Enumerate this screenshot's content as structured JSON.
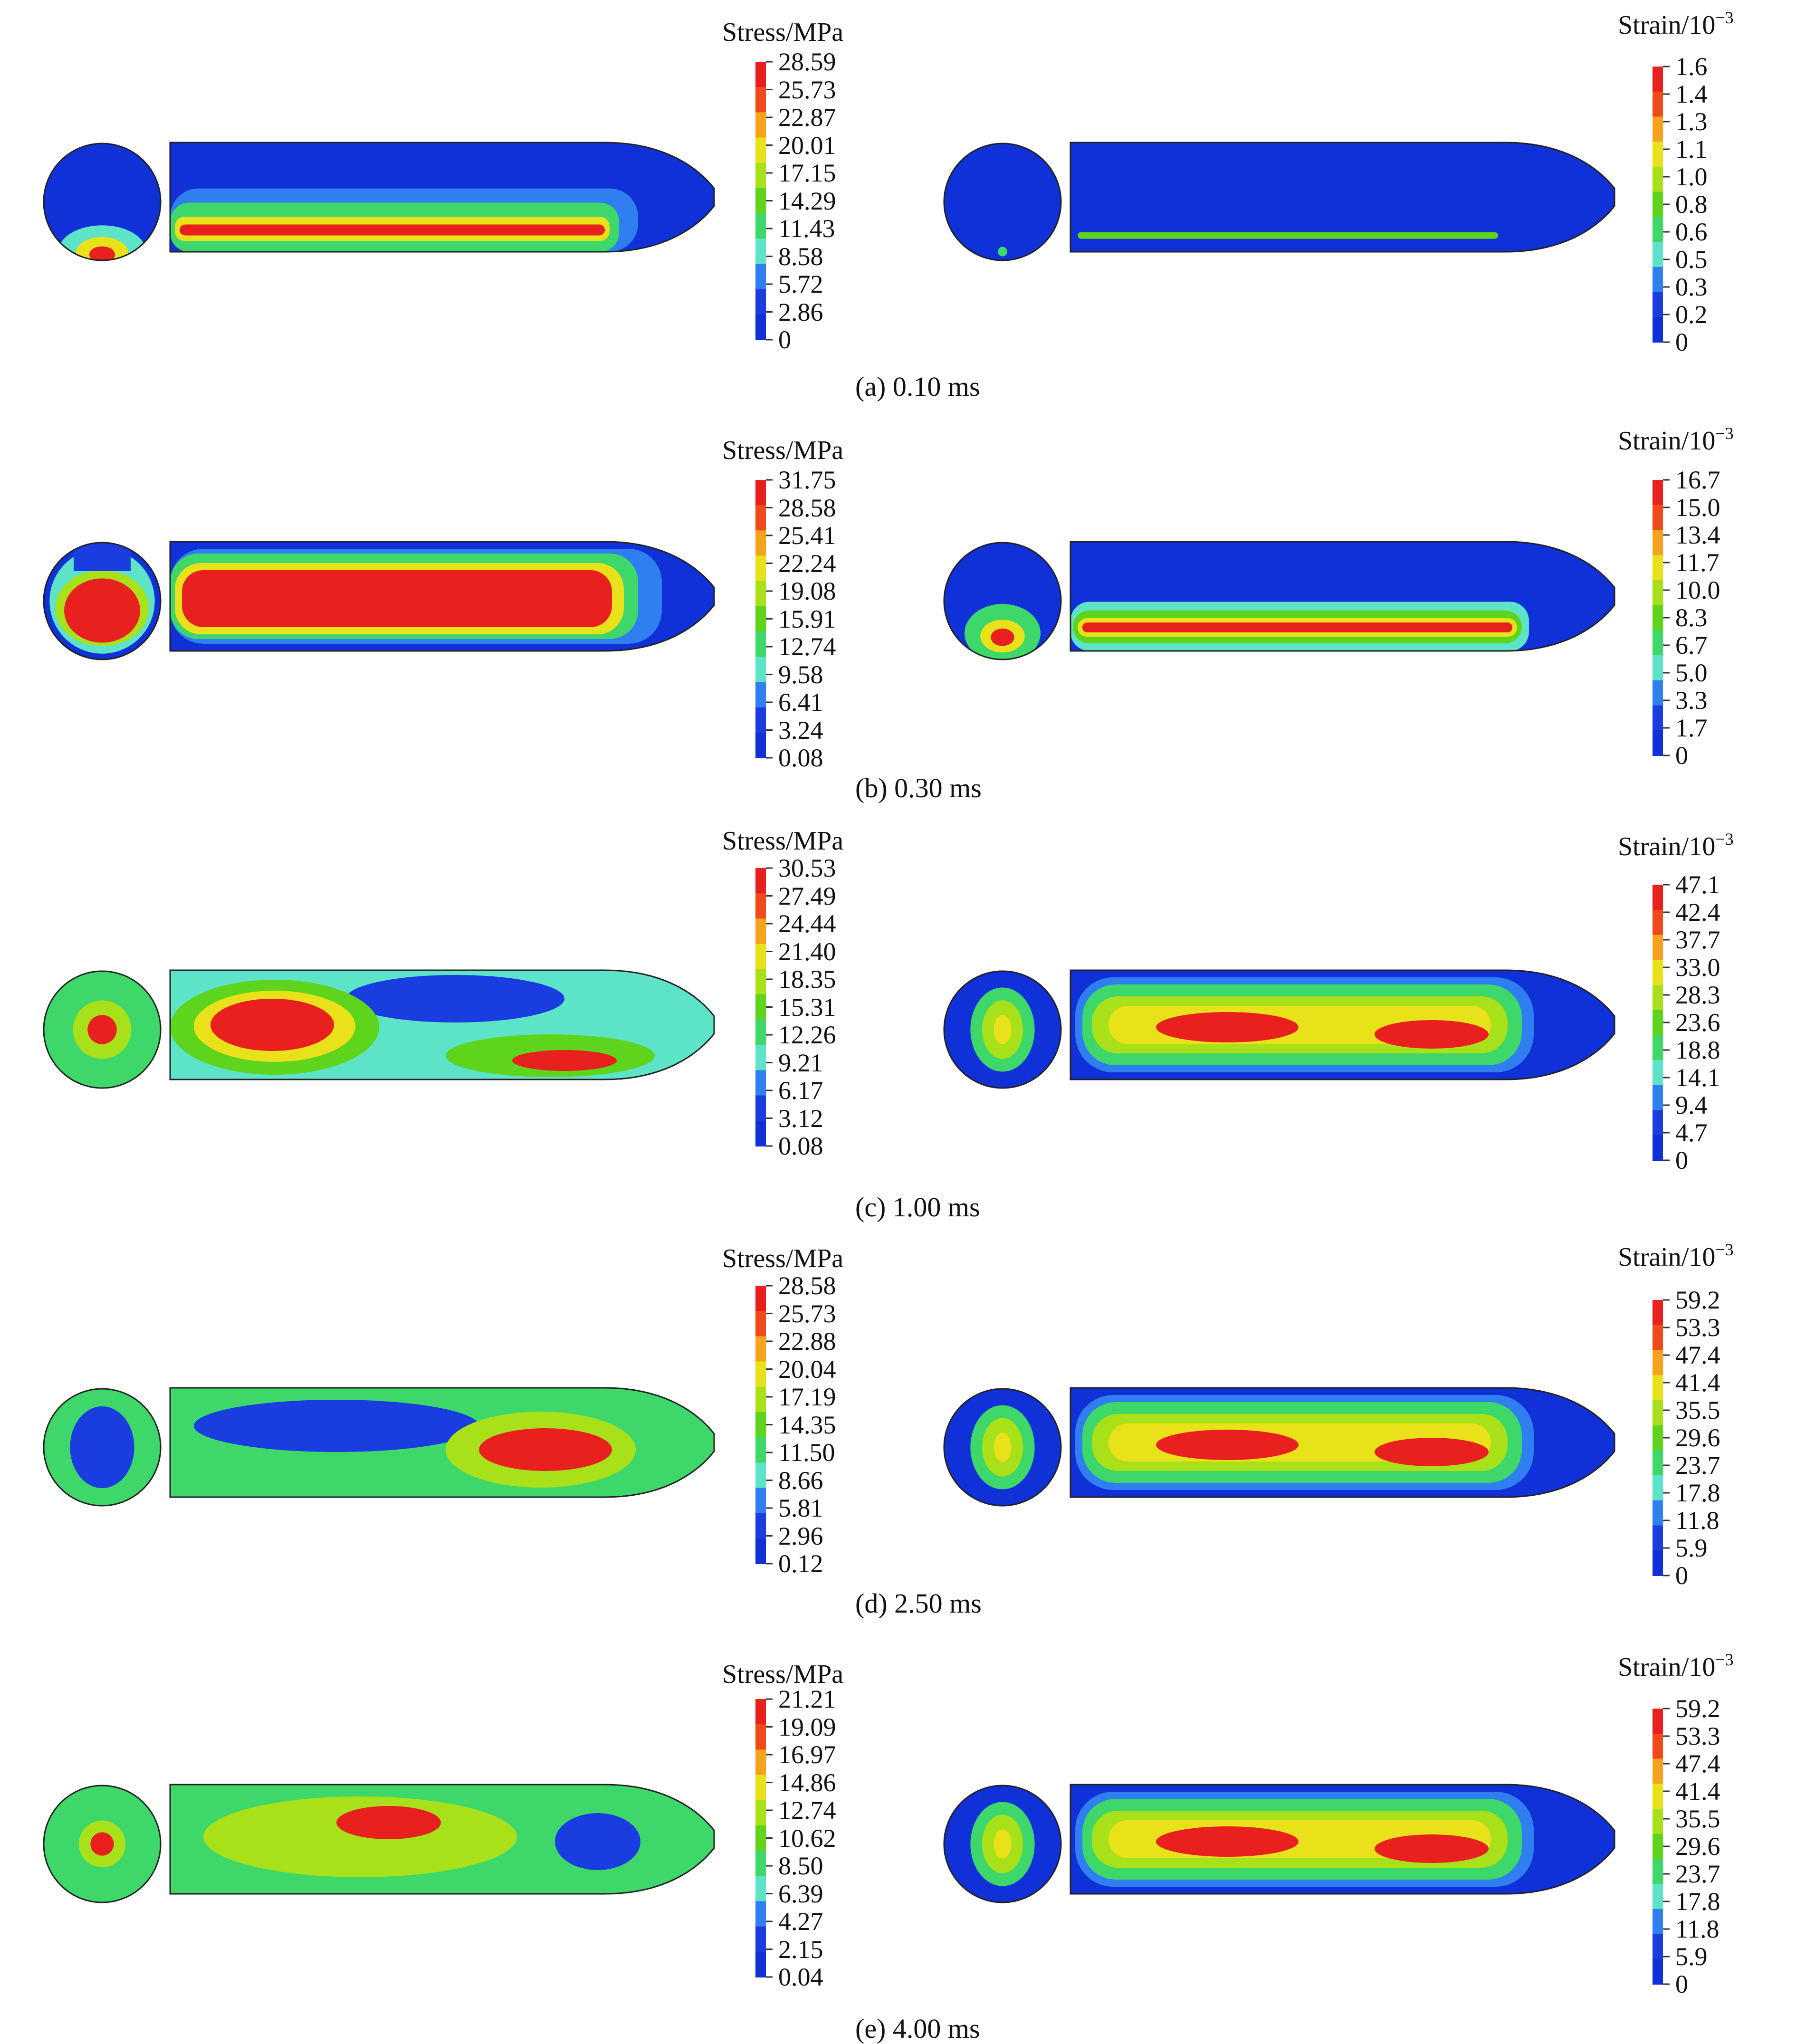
{
  "panels": [
    {
      "caption": "(a) 0.10 ms",
      "stress": {
        "title": "Stress/MPa",
        "ticks": [
          "28.59",
          "25.73",
          "22.87",
          "20.01",
          "17.15",
          "14.29",
          "11.43",
          "8.58",
          "5.72",
          "2.86",
          "0"
        ]
      },
      "strain": {
        "title": "Strain/10",
        "exponent": "−3",
        "ticks": [
          "1.6",
          "1.4",
          "1.3",
          "1.1",
          "1.0",
          "0.8",
          "0.6",
          "0.5",
          "0.3",
          "0.2",
          "0"
        ]
      }
    },
    {
      "caption": "(b) 0.30 ms",
      "stress": {
        "title": "Stress/MPa",
        "ticks": [
          "31.75",
          "28.58",
          "25.41",
          "22.24",
          "19.08",
          "15.91",
          "12.74",
          "9.58",
          "6.41",
          "3.24",
          "0.08"
        ]
      },
      "strain": {
        "title": "Strain/10",
        "exponent": "−3",
        "ticks": [
          "16.7",
          "15.0",
          "13.4",
          "11.7",
          "10.0",
          "8.3",
          "6.7",
          "5.0",
          "3.3",
          "1.7",
          "0"
        ]
      }
    },
    {
      "caption": "(c) 1.00 ms",
      "stress": {
        "title": "Stress/MPa",
        "ticks": [
          "30.53",
          "27.49",
          "24.44",
          "21.40",
          "18.35",
          "15.31",
          "12.26",
          "9.21",
          "6.17",
          "3.12",
          "0.08"
        ]
      },
      "strain": {
        "title": "Strain/10",
        "exponent": "−3",
        "ticks": [
          "47.1",
          "42.4",
          "37.7",
          "33.0",
          "28.3",
          "23.6",
          "18.8",
          "14.1",
          "9.4",
          "4.7",
          "0"
        ]
      }
    },
    {
      "caption": "(d) 2.50 ms",
      "stress": {
        "title": "Stress/MPa",
        "ticks": [
          "28.58",
          "25.73",
          "22.88",
          "20.04",
          "17.19",
          "14.35",
          "11.50",
          "8.66",
          "5.81",
          "2.96",
          "0.12"
        ]
      },
      "strain": {
        "title": "Strain/10",
        "exponent": "−3",
        "ticks": [
          "59.2",
          "53.3",
          "47.4",
          "41.4",
          "35.5",
          "29.6",
          "23.7",
          "17.8",
          "11.8",
          "5.9",
          "0"
        ]
      }
    },
    {
      "caption": "(e) 4.00 ms",
      "stress": {
        "title": "Stress/MPa",
        "ticks": [
          "21.21",
          "19.09",
          "16.97",
          "14.86",
          "12.74",
          "10.62",
          "8.50",
          "6.39",
          "4.27",
          "2.15",
          "0.04"
        ]
      },
      "strain": {
        "title": "Strain/10",
        "exponent": "−3",
        "ticks": [
          "59.2",
          "53.3",
          "47.4",
          "41.4",
          "35.5",
          "29.6",
          "23.7",
          "17.8",
          "11.8",
          "5.9",
          "0"
        ]
      }
    }
  ],
  "colormap": [
    "#e8201e",
    "#f04a1a",
    "#f7a21b",
    "#e9e21a",
    "#a8e01a",
    "#5fd41c",
    "#3ed86a",
    "#5ce3c8",
    "#2f7ff0",
    "#1a3de0",
    "#1030d8"
  ]
}
